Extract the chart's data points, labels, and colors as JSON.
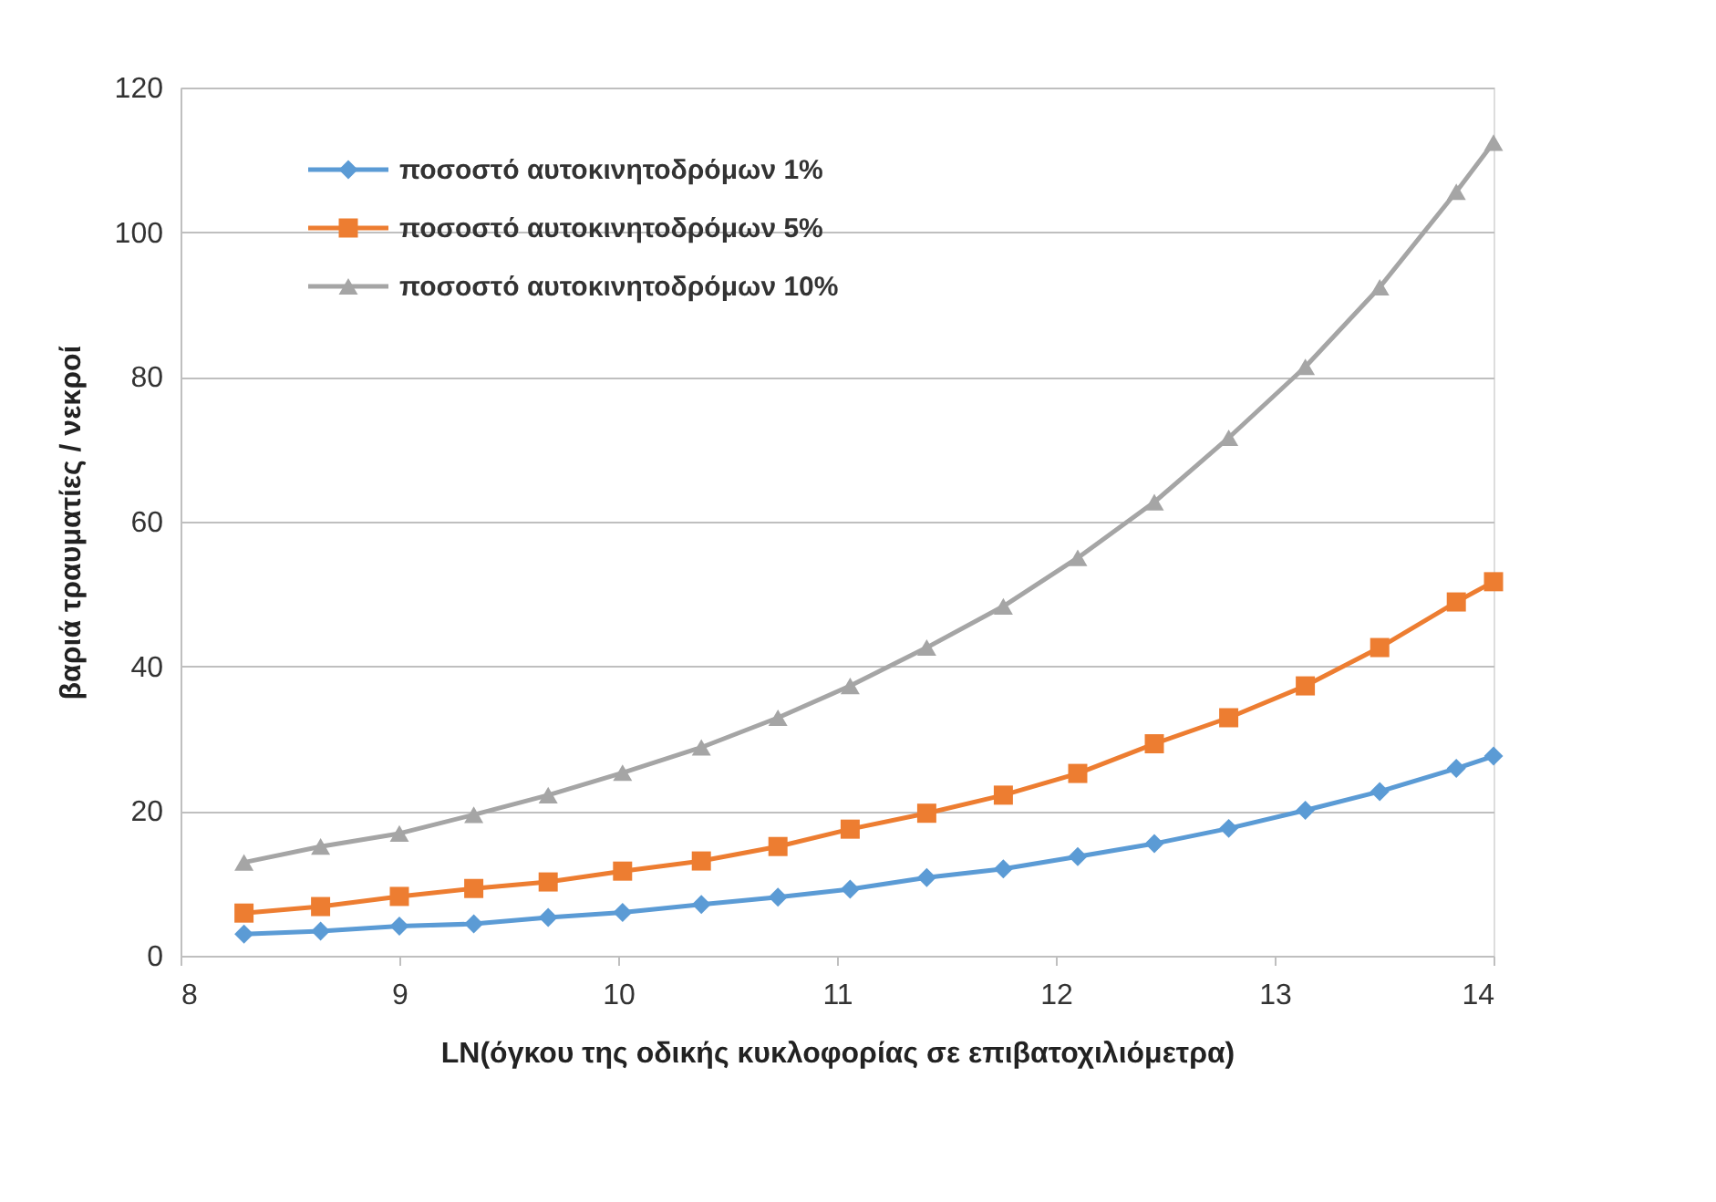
{
  "chart_data": {
    "type": "line",
    "xlabel": "LN(όγκου της οδικής κυκλοφορίας σε επιβατοχιλιόμετρα)",
    "ylabel": "βαριά τραυματίες / νεκροί",
    "x": [
      8.29,
      8.64,
      9.0,
      9.34,
      9.68,
      10.02,
      10.38,
      10.73,
      11.06,
      11.41,
      11.76,
      12.1,
      12.45,
      12.79,
      13.14,
      13.48,
      13.83,
      14.0
    ],
    "series": [
      {
        "name": "ποσοστό αυτοκινητοδρόμων 1%",
        "color": "#5b9bd5",
        "marker": "diamond",
        "values": [
          3.0,
          3.4,
          4.1,
          4.4,
          5.3,
          6.0,
          7.1,
          8.1,
          9.2,
          10.8,
          12.0,
          13.7,
          15.5,
          17.6,
          20.1,
          22.7,
          25.9,
          27.6
        ]
      },
      {
        "name": "ποσοστό αυτοκινητοδρόμων 5%",
        "color": "#ed7d31",
        "marker": "square",
        "values": [
          5.9,
          6.8,
          8.2,
          9.3,
          10.2,
          11.7,
          13.1,
          15.1,
          17.5,
          19.7,
          22.2,
          25.2,
          29.3,
          32.9,
          37.3,
          42.6,
          48.9,
          51.7
        ]
      },
      {
        "name": "ποσοστό αυτοκινητοδρόμων 10%",
        "color": "#a5a5a5",
        "marker": "triangle",
        "values": [
          12.9,
          15.1,
          16.9,
          19.5,
          22.2,
          25.3,
          28.8,
          32.9,
          37.3,
          42.6,
          48.3,
          55.0,
          62.7,
          71.6,
          81.4,
          92.4,
          105.6,
          112.4
        ]
      }
    ],
    "xlim": [
      8,
      14
    ],
    "xticks": [
      8,
      9,
      10,
      11,
      12,
      13,
      14
    ],
    "ylim": [
      0,
      120
    ],
    "yticks": [
      0,
      20,
      40,
      60,
      80,
      100,
      120
    ],
    "grid": "y",
    "legend": "top left",
    "line_style": "solid"
  }
}
